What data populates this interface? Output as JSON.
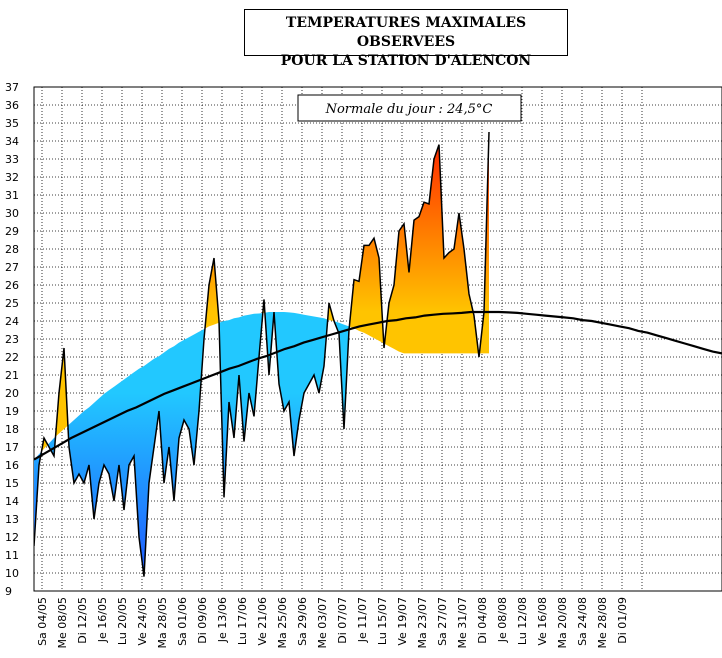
{
  "chart_data": {
    "type": "area",
    "title_line1": "TEMPERATURES MAXIMALES OBSERVEES",
    "title_line2": "POUR LA STATION D'ALENCON",
    "annotation": "Normale du jour : 24,5°C",
    "ylim": [
      9,
      37
    ],
    "yticks": [
      9,
      10,
      11,
      12,
      13,
      14,
      15,
      16,
      17,
      18,
      19,
      20,
      21,
      22,
      23,
      24,
      25,
      26,
      27,
      28,
      29,
      30,
      31,
      32,
      33,
      34,
      35,
      36,
      37
    ],
    "xlabels": [
      "Sa 04/05",
      "Me 08/05",
      "Di 12/05",
      "Je 16/05",
      "Lu 20/05",
      "Ve 24/05",
      "Ma 28/05",
      "Sa 01/06",
      "Di 09/06",
      "Je 13/06",
      "Lu 17/06",
      "Ve 21/06",
      "Ma 25/06",
      "Sa 29/06",
      "Me 03/07",
      "Di 07/07",
      "Je 11/07",
      "Lu 15/07",
      "Ve 19/07",
      "Ma 23/07",
      "Sa 27/07",
      "Me 31/07",
      "Di 04/08",
      "Je 08/08",
      "Lu 12/08",
      "Ve 16/08",
      "Ma 20/08",
      "Sa 24/08",
      "Me 28/08",
      "Di 01/09"
    ],
    "grid": true,
    "colors": {
      "below_normal": "#1f5cff",
      "above_normal": "#ff2a00",
      "warm_mid": "#ffc400",
      "cool_mid": "#22c8ff",
      "curve": "#000000"
    },
    "series": [
      {
        "name": "",
        "values": [
          11.5,
          16,
          17.5,
          17,
          16.5,
          20,
          22.5,
          17,
          15,
          15.5,
          15,
          16,
          13,
          15,
          16,
          15.5,
          14,
          16,
          13.5,
          16,
          16.5,
          12,
          9.8,
          15,
          17,
          19,
          15,
          17,
          14,
          17.5,
          18.5,
          18,
          16,
          19,
          23,
          26,
          27.5,
          24,
          14.2,
          19.5,
          17.5,
          21,
          17.3,
          20,
          18.7,
          22,
          25.2,
          21,
          24.5,
          20.5,
          19,
          19.5,
          16.5,
          18.5,
          20,
          20.5,
          21,
          20,
          21.5,
          25,
          24,
          23.3,
          18,
          23.5,
          26.3,
          26.2,
          28.2,
          28.2,
          28.6,
          27.5,
          22.5,
          25,
          26,
          29,
          29.4,
          26.7,
          29.6,
          29.8,
          30.6,
          30.5,
          33,
          33.8,
          27.5,
          27.8,
          28,
          30,
          28,
          25.5,
          24.3,
          22,
          24.5,
          34.5
        ]
      },
      {
        "name": "",
        "values": [
          16.3,
          16.6,
          16.9,
          17.2,
          17.5,
          17.75,
          18,
          18.25,
          18.5,
          18.75,
          19,
          19.2,
          19.45,
          19.7,
          19.95,
          20.15,
          20.35,
          20.55,
          20.75,
          20.95,
          21.15,
          21.35,
          21.5,
          21.7,
          21.9,
          22.05,
          22.25,
          22.45,
          22.6,
          22.8,
          22.95,
          23.1,
          23.25,
          23.4,
          23.55,
          23.7,
          23.8,
          23.9,
          24.0,
          24.05,
          24.15,
          24.2,
          24.3,
          24.35,
          24.4,
          24.42,
          24.45,
          24.5,
          24.5,
          24.5,
          24.5,
          24.48,
          24.45,
          24.4,
          24.35,
          24.3,
          24.25,
          24.2,
          24.15,
          24.05,
          24.0,
          23.9,
          23.8,
          23.7,
          23.6,
          23.45,
          23.35,
          23.2,
          23.05,
          22.9,
          22.75,
          22.6,
          22.45,
          22.3,
          22.2
        ]
      }
    ]
  }
}
